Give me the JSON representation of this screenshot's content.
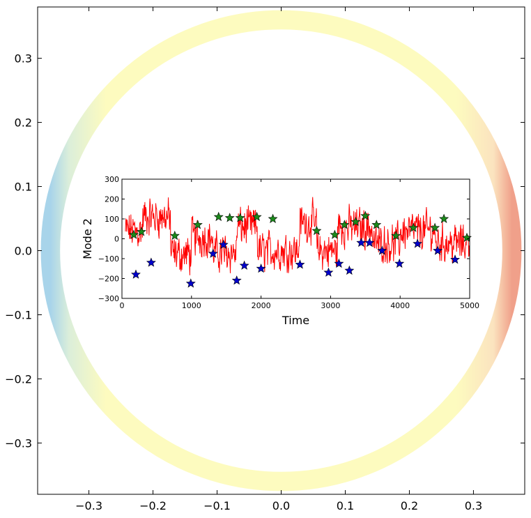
{
  "chart_data": [
    {
      "type": "ring",
      "xlim": [
        -0.38,
        0.38
      ],
      "ylim": [
        -0.38,
        0.38
      ],
      "x_ticks": [
        -0.3,
        -0.2,
        -0.1,
        0.0,
        0.1,
        0.2,
        0.3
      ],
      "y_ticks": [
        -0.3,
        -0.2,
        -0.1,
        0.0,
        0.1,
        0.2,
        0.3
      ],
      "x_tick_labels": [
        "−0.3",
        "−0.2",
        "−0.1",
        "0.0",
        "0.1",
        "0.2",
        "0.3"
      ],
      "y_tick_labels": [
        "−0.3",
        "−0.2",
        "−0.1",
        "0.0",
        "0.1",
        "0.2",
        "0.3"
      ],
      "ring": {
        "outer_radius": 0.375,
        "inner_radius": 0.345,
        "center": [
          0,
          0
        ]
      },
      "colors": {
        "ring_main": "#fdfbbf",
        "ring_left_edge": "#a8d4ea",
        "ring_right_edge": "#f0a08a"
      }
    },
    {
      "type": "line",
      "xlabel": "Time",
      "ylabel": "Mode 2",
      "xlim": [
        0,
        5000
      ],
      "ylim": [
        -300,
        300
      ],
      "x_ticks": [
        0,
        1000,
        2000,
        3000,
        4000,
        5000
      ],
      "y_ticks": [
        -300,
        -200,
        -100,
        0,
        100,
        200,
        300
      ],
      "x_tick_labels": [
        "0",
        "1000",
        "2000",
        "3000",
        "4000",
        "5000"
      ],
      "y_tick_labels": [
        "−300",
        "−200",
        "−100",
        "0",
        "100",
        "200",
        "300"
      ],
      "line_color": "#ff0000",
      "series_regimes": [
        {
          "x0": 50,
          "x1": 300,
          "level": 40
        },
        {
          "x0": 300,
          "x1": 700,
          "level": 110
        },
        {
          "x0": 700,
          "x1": 1000,
          "level": -80
        },
        {
          "x0": 1000,
          "x1": 1300,
          "level": 10
        },
        {
          "x0": 1300,
          "x1": 1650,
          "level": -70
        },
        {
          "x0": 1650,
          "x1": 1950,
          "level": 60
        },
        {
          "x0": 1950,
          "x1": 2550,
          "level": -60
        },
        {
          "x0": 2550,
          "x1": 2800,
          "level": 80
        },
        {
          "x0": 2800,
          "x1": 3100,
          "level": -60
        },
        {
          "x0": 3100,
          "x1": 3600,
          "level": 60
        },
        {
          "x0": 3600,
          "x1": 4000,
          "level": -20
        },
        {
          "x0": 4000,
          "x1": 4500,
          "level": 40
        },
        {
          "x0": 4500,
          "x1": 5000,
          "level": -20
        }
      ],
      "green_stars": {
        "color": "#1a8a1a",
        "x": [
          170,
          280,
          760,
          1090,
          1390,
          1550,
          1700,
          1940,
          2170,
          2800,
          3060,
          3200,
          3360,
          3500,
          3660,
          3940,
          4190,
          4500,
          4630,
          4960
        ],
        "y": [
          20,
          35,
          15,
          70,
          110,
          105,
          105,
          110,
          100,
          40,
          20,
          70,
          85,
          115,
          70,
          15,
          55,
          55,
          100,
          5
        ]
      },
      "blue_stars": {
        "color": "#0000cc",
        "x": [
          200,
          420,
          990,
          1310,
          1460,
          1650,
          1760,
          2000,
          2560,
          2970,
          3120,
          3270,
          3440,
          3560,
          3740,
          3990,
          4250,
          4540,
          4790
        ],
        "y": [
          -180,
          -120,
          -225,
          -75,
          -30,
          -210,
          -135,
          -150,
          -130,
          -170,
          -125,
          -160,
          -20,
          -20,
          -60,
          -125,
          -25,
          -60,
          -105
        ]
      }
    }
  ]
}
